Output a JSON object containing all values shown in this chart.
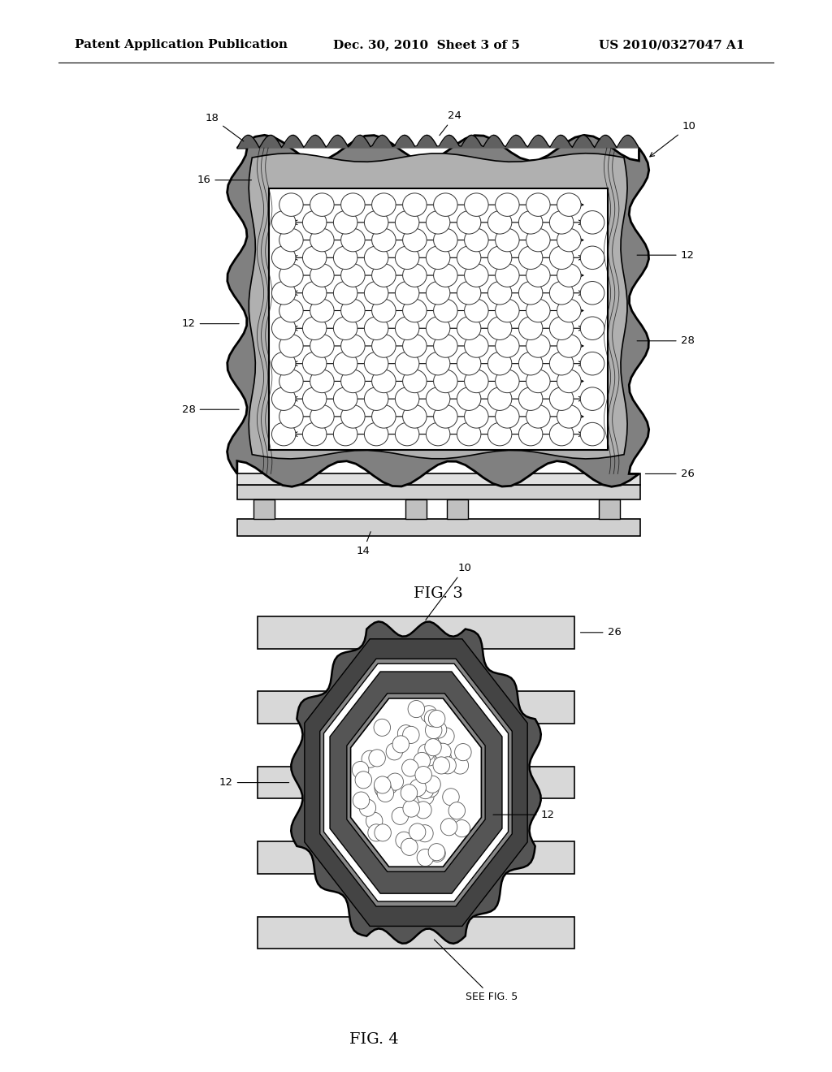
{
  "background_color": "#ffffff",
  "header_text": "Patent Application Publication",
  "header_date": "Dec. 30, 2010  Sheet 3 of 5",
  "header_patent": "US 2010/0327047 A1",
  "fig3_label": "FIG. 3",
  "fig4_label": "FIG. 4",
  "fig4_sublabel": "SEE FIG. 5"
}
